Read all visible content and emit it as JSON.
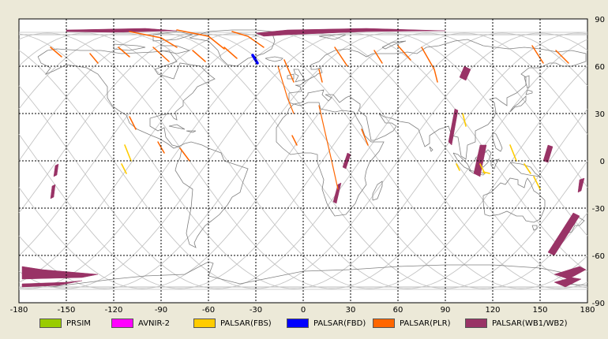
{
  "map": {
    "lon_range": [
      -180,
      180
    ],
    "lat_range": [
      -90,
      90
    ],
    "lon_ticks": [
      "-180",
      "-150",
      "-120",
      "-90",
      "-60",
      "-30",
      "0",
      "30",
      "60",
      "90",
      "120",
      "150",
      "180"
    ],
    "lat_ticks": [
      "90",
      "60",
      "30",
      "0",
      "-30",
      "-60",
      "-90"
    ],
    "grid": "dashed"
  },
  "legend": {
    "items": [
      {
        "label": "PRSIM",
        "color": "#99cc00"
      },
      {
        "label": "AVNIR-2",
        "color": "#ff00ff"
      },
      {
        "label": "PALSAR(FBS)",
        "color": "#ffcc00"
      },
      {
        "label": "PALSAR(FBD)",
        "color": "#0000ff"
      },
      {
        "label": "PALSAR(PLR)",
        "color": "#ff6600"
      },
      {
        "label": "PALSAR(WB1/WB2)",
        "color": "#993366"
      }
    ]
  }
}
